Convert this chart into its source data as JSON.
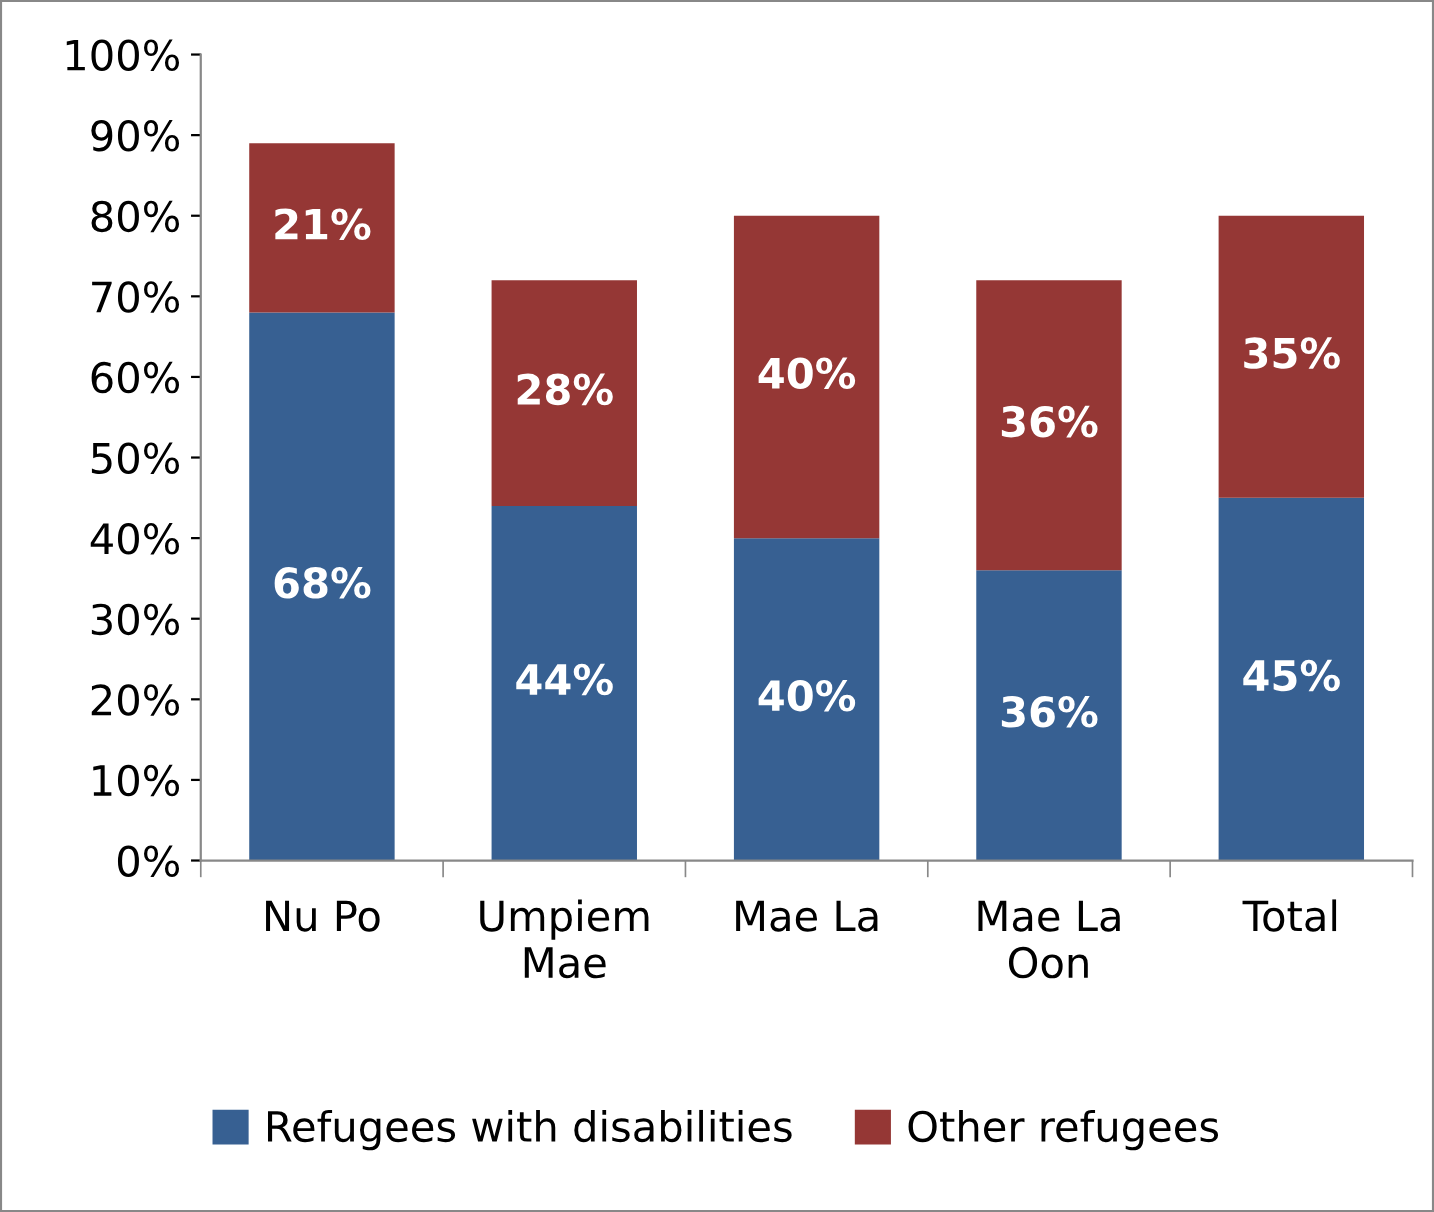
{
  "chart_data": {
    "type": "bar",
    "stacked": true,
    "categories": [
      "Nu Po",
      "Umpiem\nMae",
      "Mae La",
      "Mae La\nOon",
      "Total"
    ],
    "series": [
      {
        "name": "Refugees with disabilities",
        "color": "#376092",
        "values": [
          68,
          44,
          40,
          36,
          45
        ],
        "value_labels": [
          "68%",
          "44%",
          "40%",
          "36%",
          "45%"
        ]
      },
      {
        "name": "Other refugees",
        "color": "#953735",
        "values": [
          21,
          28,
          40,
          36,
          35
        ],
        "value_labels": [
          "21%",
          "28%",
          "40%",
          "36%",
          "35%"
        ]
      }
    ],
    "ylim": [
      0,
      100
    ],
    "yticks": [
      {
        "value": 0,
        "label": "0%"
      },
      {
        "value": 10,
        "label": "10%"
      },
      {
        "value": 20,
        "label": "20%"
      },
      {
        "value": 30,
        "label": "30%"
      },
      {
        "value": 40,
        "label": "40%"
      },
      {
        "value": 50,
        "label": "50%"
      },
      {
        "value": 60,
        "label": "60%"
      },
      {
        "value": 70,
        "label": "70%"
      },
      {
        "value": 80,
        "label": "80%"
      },
      {
        "value": 90,
        "label": "90%"
      },
      {
        "value": 100,
        "label": "100%"
      }
    ],
    "grid": false,
    "legend": "bottom"
  }
}
